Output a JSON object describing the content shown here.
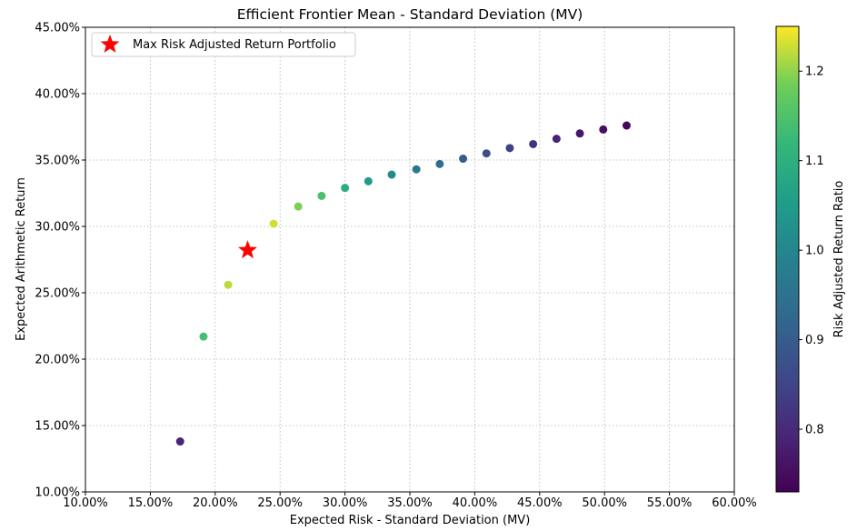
{
  "chart_data": {
    "type": "scatter",
    "title": "Efficient Frontier Mean - Standard Deviation (MV)",
    "xlabel": "Expected Risk - Standard Deviation (MV)",
    "ylabel": "Expected Arithmetic Return",
    "xlim": [
      0.1,
      0.6
    ],
    "ylim": [
      0.1,
      0.45
    ],
    "x_ticks": [
      "10.00%",
      "15.00%",
      "20.00%",
      "25.00%",
      "30.00%",
      "35.00%",
      "40.00%",
      "45.00%",
      "50.00%",
      "55.00%",
      "60.00%"
    ],
    "y_ticks": [
      "10.00%",
      "15.00%",
      "20.00%",
      "25.00%",
      "30.00%",
      "35.00%",
      "40.00%",
      "45.00%"
    ],
    "grid": true,
    "colormap": "viridis",
    "colorbar": {
      "label": "Risk Adjusted Return Ratio",
      "range": [
        0.73,
        1.25
      ],
      "ticks": [
        "0.8",
        "0.9",
        "1.0",
        "1.1",
        "1.2"
      ]
    },
    "series": [
      {
        "points": [
          {
            "x": 0.173,
            "y": 0.138,
            "c": 0.79
          },
          {
            "x": 0.191,
            "y": 0.217,
            "c": 1.14
          },
          {
            "x": 0.21,
            "y": 0.256,
            "c": 1.22
          },
          {
            "x": 0.245,
            "y": 0.302,
            "c": 1.23
          },
          {
            "x": 0.264,
            "y": 0.315,
            "c": 1.19
          },
          {
            "x": 0.282,
            "y": 0.323,
            "c": 1.145
          },
          {
            "x": 0.3,
            "y": 0.329,
            "c": 1.095
          },
          {
            "x": 0.318,
            "y": 0.334,
            "c": 1.05
          },
          {
            "x": 0.336,
            "y": 0.339,
            "c": 1.01
          },
          {
            "x": 0.355,
            "y": 0.343,
            "c": 0.97
          },
          {
            "x": 0.373,
            "y": 0.347,
            "c": 0.94
          },
          {
            "x": 0.391,
            "y": 0.351,
            "c": 0.9
          },
          {
            "x": 0.409,
            "y": 0.355,
            "c": 0.87
          },
          {
            "x": 0.427,
            "y": 0.359,
            "c": 0.84
          },
          {
            "x": 0.445,
            "y": 0.362,
            "c": 0.815
          },
          {
            "x": 0.463,
            "y": 0.366,
            "c": 0.79
          },
          {
            "x": 0.481,
            "y": 0.37,
            "c": 0.77
          },
          {
            "x": 0.499,
            "y": 0.373,
            "c": 0.755
          },
          {
            "x": 0.517,
            "y": 0.376,
            "c": 0.74
          }
        ]
      },
      {
        "name": "Max Risk Adjusted Return Portfolio",
        "marker": "star",
        "color": "#ff0000",
        "points": [
          {
            "x": 0.225,
            "y": 0.282
          }
        ]
      }
    ],
    "legend": {
      "position": "top-left",
      "entries": [
        "Max Risk Adjusted Return Portfolio"
      ]
    }
  }
}
